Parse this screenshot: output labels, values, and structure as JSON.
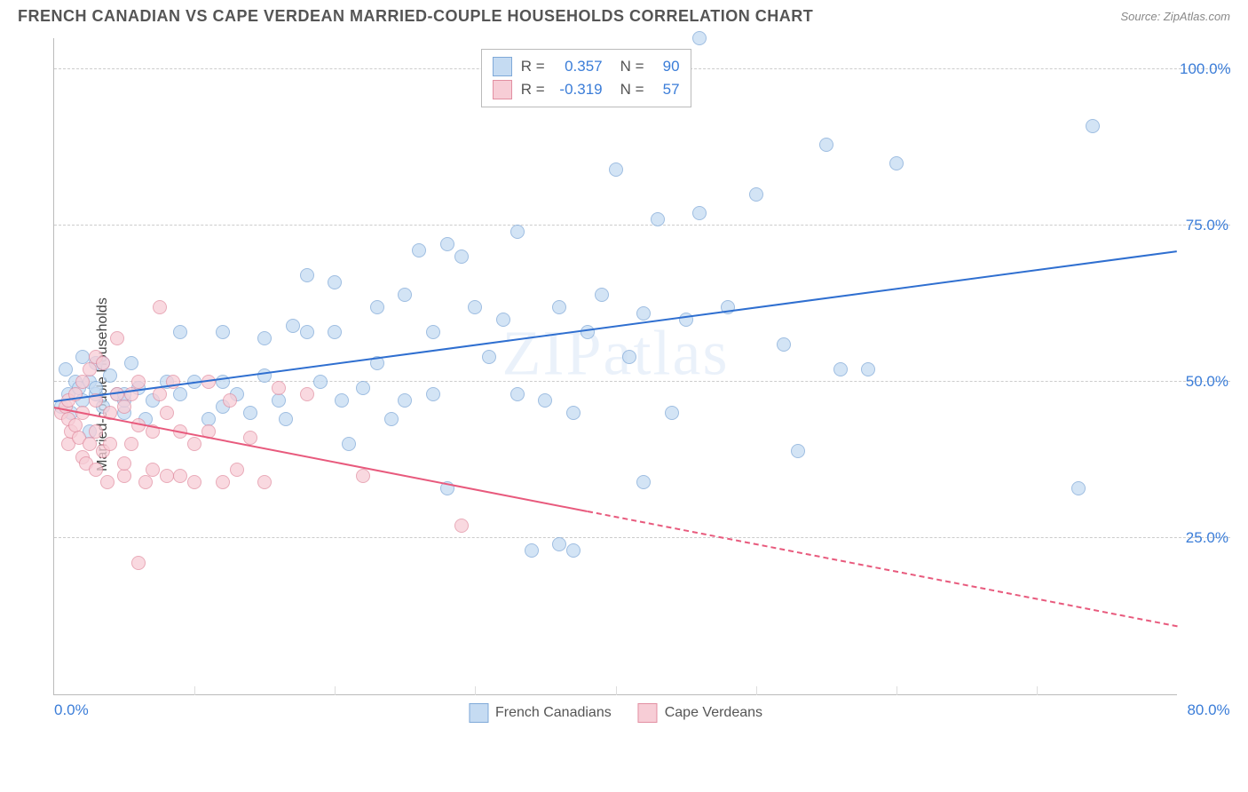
{
  "header": {
    "title": "FRENCH CANADIAN VS CAPE VERDEAN MARRIED-COUPLE HOUSEHOLDS CORRELATION CHART",
    "source": "Source: ZipAtlas.com"
  },
  "chart": {
    "type": "scatter",
    "ylabel": "Married-couple Households",
    "watermark": "ZIPatlas",
    "xlim": [
      0,
      80
    ],
    "ylim": [
      0,
      105
    ],
    "xticks": [
      {
        "pos": 0,
        "label": "0.0%"
      },
      {
        "pos": 80,
        "label": "80.0%"
      }
    ],
    "xticks_minor": [
      10,
      20,
      30,
      40,
      50,
      60,
      70
    ],
    "yticks": [
      {
        "pos": 25,
        "label": "25.0%"
      },
      {
        "pos": 50,
        "label": "50.0%"
      },
      {
        "pos": 75,
        "label": "75.0%"
      },
      {
        "pos": 100,
        "label": "100.0%"
      }
    ],
    "background_color": "#ffffff",
    "grid_color": "#cccccc",
    "axis_color": "#bbbbbb",
    "tick_label_color": "#3b7dd8",
    "tick_fontsize": 17,
    "label_fontsize": 16,
    "series": [
      {
        "name": "French Canadians",
        "fill_color": "#c5dbf2",
        "stroke_color": "#7fa9d8",
        "line_color": "#2f6fd0",
        "marker_size": 16,
        "R": "0.357",
        "N": "90",
        "trend": {
          "x1": 0,
          "y1": 47,
          "x2": 80,
          "y2": 71,
          "solid_until": 80
        },
        "points": [
          [
            0.5,
            46
          ],
          [
            0.8,
            52
          ],
          [
            1,
            48
          ],
          [
            1.2,
            45
          ],
          [
            1.5,
            50
          ],
          [
            1.8,
            49
          ],
          [
            2,
            47
          ],
          [
            2,
            54
          ],
          [
            2.5,
            50
          ],
          [
            2.5,
            42
          ],
          [
            3,
            48
          ],
          [
            3,
            53
          ],
          [
            3,
            49
          ],
          [
            3.5,
            46
          ],
          [
            3.5,
            53
          ],
          [
            4,
            51
          ],
          [
            4.5,
            48
          ],
          [
            5,
            45
          ],
          [
            5,
            47
          ],
          [
            5,
            48
          ],
          [
            5.5,
            53
          ],
          [
            6,
            49
          ],
          [
            6.5,
            44
          ],
          [
            7,
            47
          ],
          [
            8,
            50
          ],
          [
            9,
            58
          ],
          [
            9,
            48
          ],
          [
            10,
            50
          ],
          [
            11,
            44
          ],
          [
            12,
            58
          ],
          [
            12,
            46
          ],
          [
            12,
            50
          ],
          [
            13,
            48
          ],
          [
            14,
            45
          ],
          [
            15,
            57
          ],
          [
            15,
            51
          ],
          [
            16,
            47
          ],
          [
            16.5,
            44
          ],
          [
            17,
            59
          ],
          [
            18,
            67
          ],
          [
            18,
            58
          ],
          [
            19,
            50
          ],
          [
            20,
            66
          ],
          [
            20,
            58
          ],
          [
            20.5,
            47
          ],
          [
            21,
            40
          ],
          [
            22,
            49
          ],
          [
            23,
            62
          ],
          [
            23,
            53
          ],
          [
            24,
            44
          ],
          [
            25,
            64
          ],
          [
            25,
            47
          ],
          [
            26,
            71
          ],
          [
            27,
            58
          ],
          [
            27,
            48
          ],
          [
            28,
            72
          ],
          [
            28,
            33
          ],
          [
            29,
            70
          ],
          [
            30,
            62
          ],
          [
            31,
            54
          ],
          [
            32,
            60
          ],
          [
            33,
            74
          ],
          [
            33,
            48
          ],
          [
            34,
            23
          ],
          [
            35,
            47
          ],
          [
            36,
            24
          ],
          [
            36,
            62
          ],
          [
            37,
            45
          ],
          [
            37,
            23
          ],
          [
            38,
            58
          ],
          [
            39,
            64
          ],
          [
            40,
            84
          ],
          [
            41,
            54
          ],
          [
            42,
            61
          ],
          [
            42,
            34
          ],
          [
            43,
            76
          ],
          [
            44,
            45
          ],
          [
            45,
            60
          ],
          [
            46,
            105
          ],
          [
            46,
            77
          ],
          [
            48,
            62
          ],
          [
            50,
            80
          ],
          [
            52,
            56
          ],
          [
            53,
            39
          ],
          [
            55,
            88
          ],
          [
            56,
            52
          ],
          [
            58,
            52
          ],
          [
            60,
            85
          ],
          [
            73,
            33
          ],
          [
            74,
            91
          ]
        ]
      },
      {
        "name": "Cape Verdeans",
        "fill_color": "#f7cdd6",
        "stroke_color": "#e28fa2",
        "line_color": "#e85a7d",
        "marker_size": 16,
        "R": "-0.319",
        "N": "57",
        "trend": {
          "x1": 0,
          "y1": 46,
          "x2": 80,
          "y2": 11,
          "solid_until": 38
        },
        "points": [
          [
            0.5,
            45
          ],
          [
            0.8,
            46
          ],
          [
            1,
            47
          ],
          [
            1,
            44
          ],
          [
            1,
            40
          ],
          [
            1.2,
            42
          ],
          [
            1.5,
            48
          ],
          [
            1.5,
            43
          ],
          [
            1.8,
            41
          ],
          [
            2,
            50
          ],
          [
            2,
            38
          ],
          [
            2,
            45
          ],
          [
            2.3,
            37
          ],
          [
            2.5,
            40
          ],
          [
            2.5,
            52
          ],
          [
            3,
            42
          ],
          [
            3,
            36
          ],
          [
            3,
            47
          ],
          [
            3,
            54
          ],
          [
            3.5,
            53
          ],
          [
            3.5,
            39
          ],
          [
            3.8,
            34
          ],
          [
            4,
            45
          ],
          [
            4,
            40
          ],
          [
            4.5,
            57
          ],
          [
            4.5,
            48
          ],
          [
            5,
            46
          ],
          [
            5,
            35
          ],
          [
            5,
            37
          ],
          [
            5.5,
            40
          ],
          [
            5.5,
            48
          ],
          [
            6,
            43
          ],
          [
            6,
            50
          ],
          [
            6,
            21
          ],
          [
            6.5,
            34
          ],
          [
            7,
            42
          ],
          [
            7,
            36
          ],
          [
            7.5,
            48
          ],
          [
            7.5,
            62
          ],
          [
            8,
            45
          ],
          [
            8,
            35
          ],
          [
            8.5,
            50
          ],
          [
            9,
            35
          ],
          [
            9,
            42
          ],
          [
            10,
            34
          ],
          [
            10,
            40
          ],
          [
            11,
            50
          ],
          [
            11,
            42
          ],
          [
            12,
            34
          ],
          [
            12.5,
            47
          ],
          [
            13,
            36
          ],
          [
            14,
            41
          ],
          [
            15,
            34
          ],
          [
            16,
            49
          ],
          [
            18,
            48
          ],
          [
            22,
            35
          ],
          [
            29,
            27
          ]
        ]
      }
    ],
    "legend": {
      "items": [
        {
          "label": "French Canadians",
          "series": 0
        },
        {
          "label": "Cape Verdeans",
          "series": 1
        }
      ]
    }
  }
}
